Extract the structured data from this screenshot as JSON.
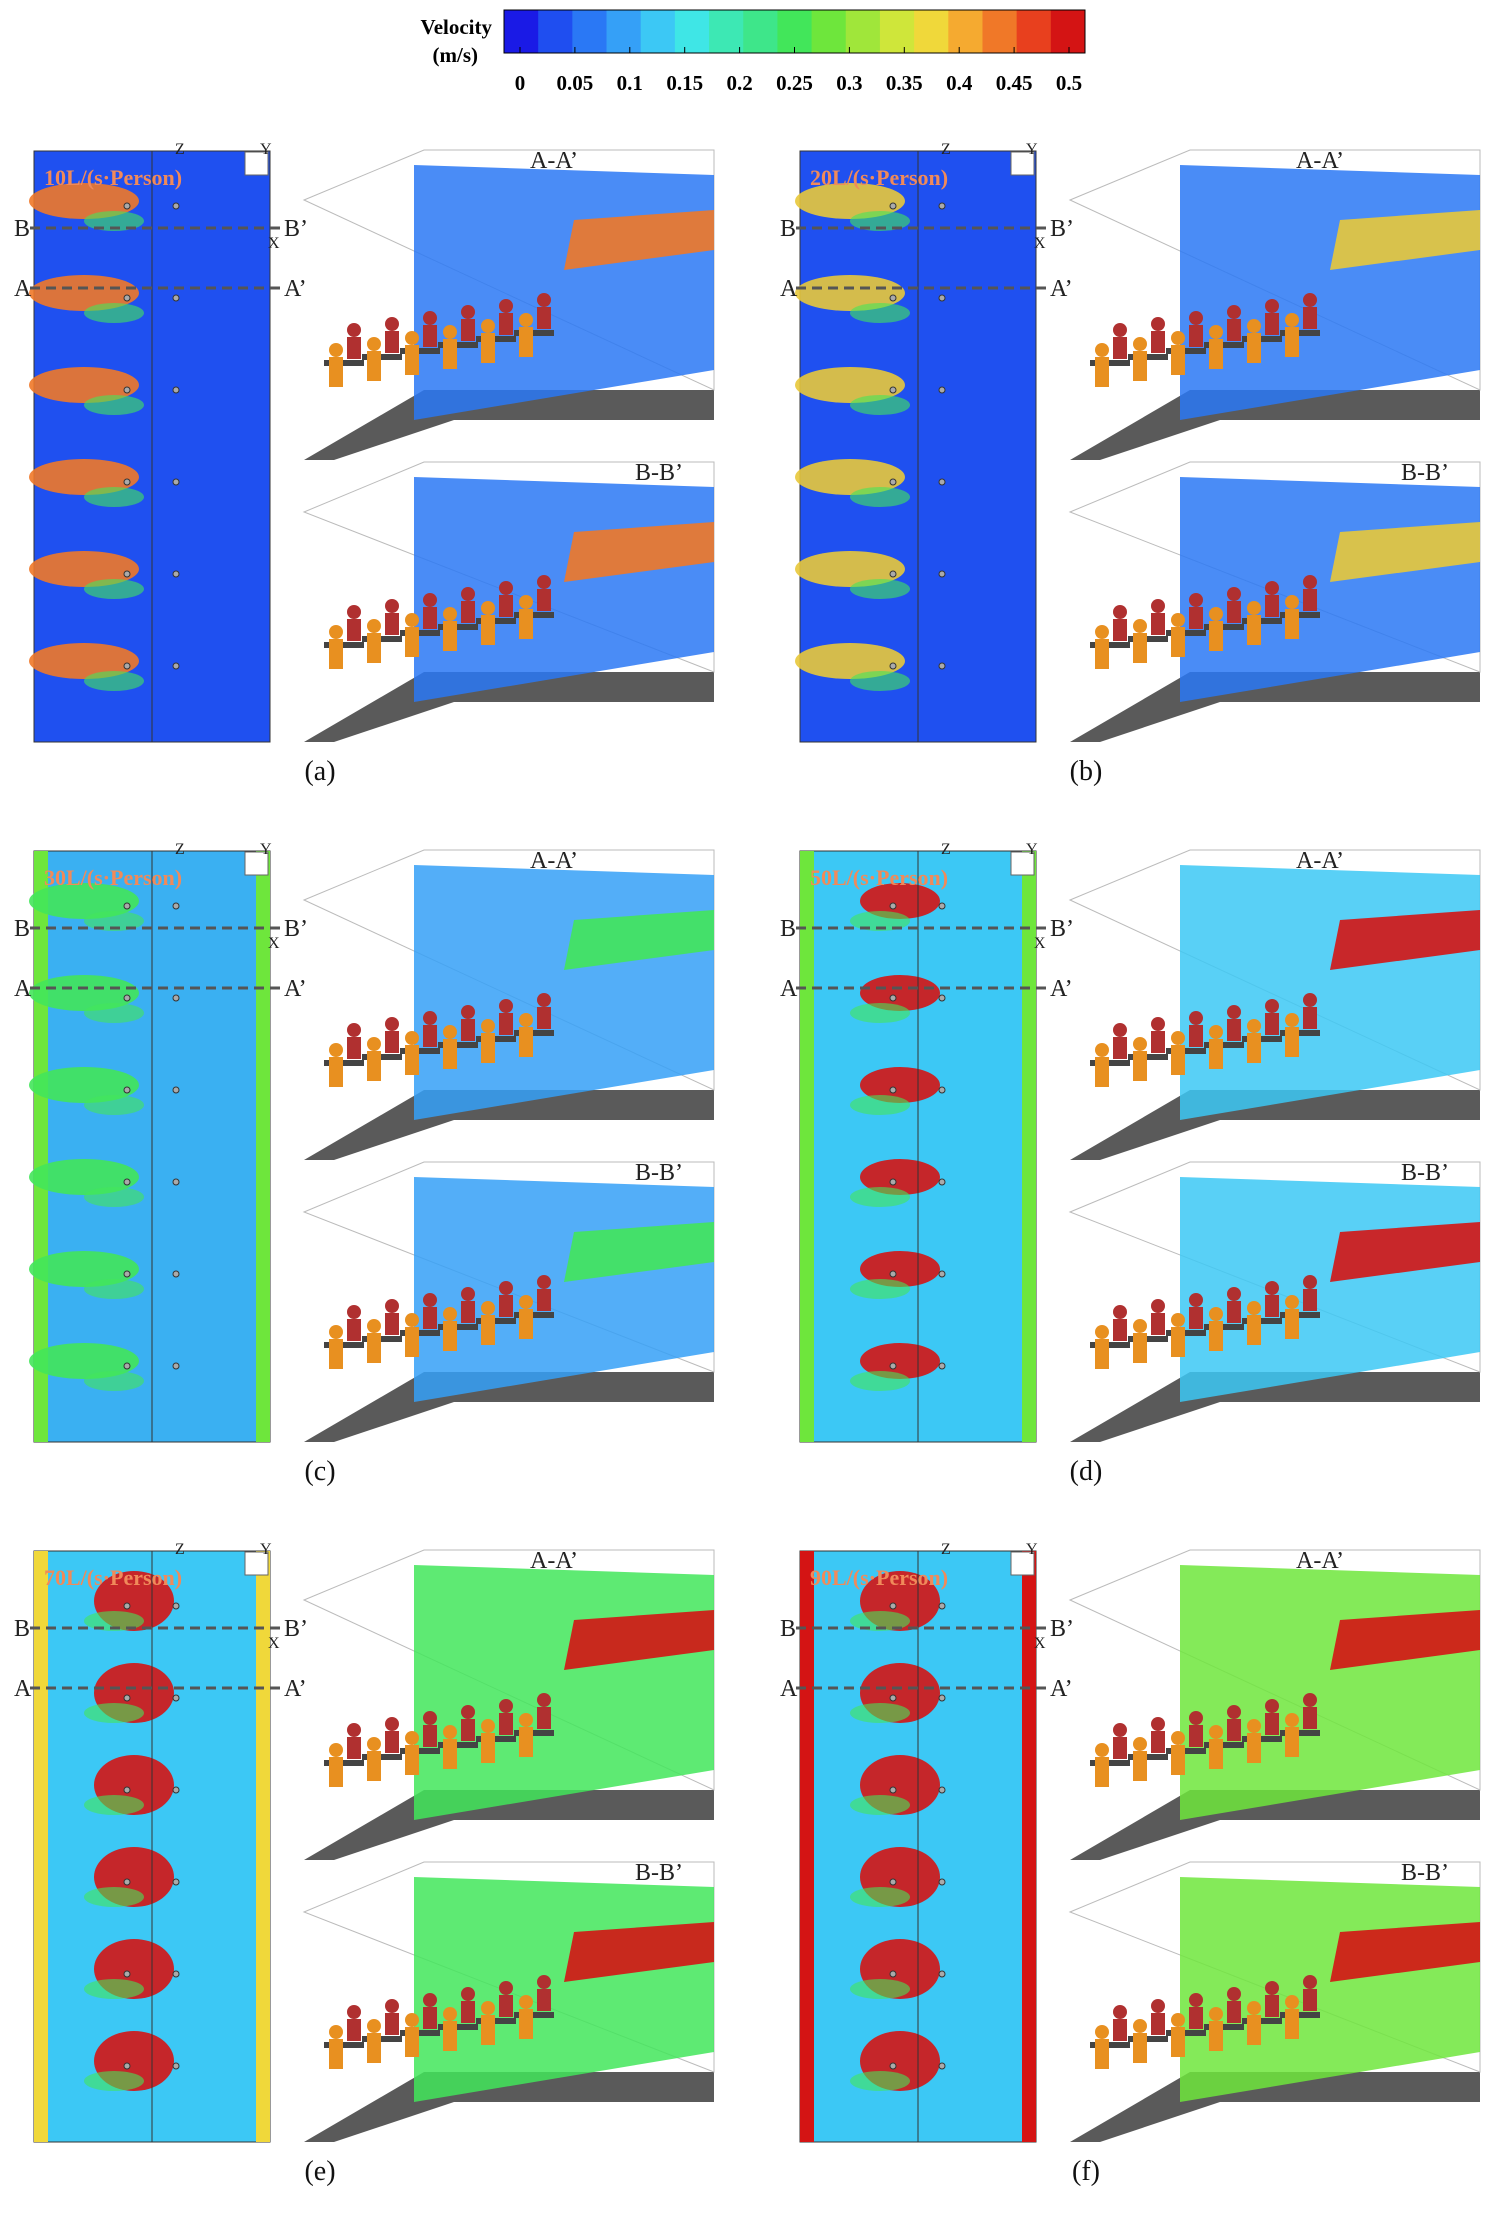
{
  "colorbar": {
    "title": "Velocity",
    "unit": "(m/s)",
    "ticks": [
      0,
      0.05,
      0.1,
      0.15,
      0.2,
      0.25,
      0.3,
      0.35,
      0.4,
      0.45,
      0.5
    ],
    "colors": [
      "#1a1ae6",
      "#1f4ef0",
      "#2a78f5",
      "#35a0f7",
      "#3cc8f5",
      "#3fe6e6",
      "#3de8b4",
      "#3ee68a",
      "#42e65a",
      "#6ee63c",
      "#a0e63a",
      "#cfe63a",
      "#f0d83a",
      "#f5aa30",
      "#f07828",
      "#e8401e",
      "#d41414"
    ]
  },
  "section_labels": {
    "a": "A",
    "a_prime": "A’",
    "b": "B",
    "b_prime": "B’",
    "aa": "A-A’",
    "bb": "B-B’",
    "z": "Z",
    "y": "Y",
    "x": "X"
  },
  "panels": [
    {
      "flow": "10L/(s·Person)",
      "caption": "(a)"
    },
    {
      "flow": "20L/(s·Person)",
      "caption": "(b)"
    },
    {
      "flow": "30L/(s·Person)",
      "caption": "(c)"
    },
    {
      "flow": "50L/(s·Person)",
      "caption": "(d)"
    },
    {
      "flow": "70L/(s·Person)",
      "caption": "(e)"
    },
    {
      "flow": "90L/(s·Person)",
      "caption": "(f)"
    }
  ]
}
